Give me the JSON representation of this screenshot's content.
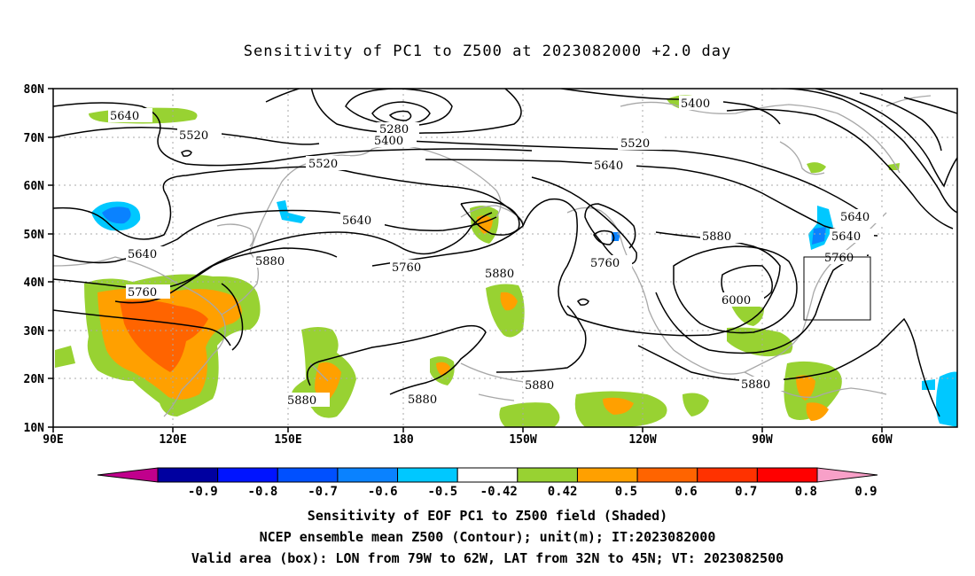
{
  "title": "Sensitivity of PC1 to Z500 at 2023082000 +2.0 day",
  "map": {
    "lat_labels": [
      "80N",
      "70N",
      "60N",
      "50N",
      "40N",
      "30N",
      "20N",
      "10N"
    ],
    "lon_labels": [
      "90E",
      "120E",
      "150E",
      "180",
      "150W",
      "120W",
      "90W",
      "60W"
    ],
    "contour_labels": [
      "5640",
      "5520",
      "5280",
      "5400",
      "5520",
      "5640",
      "5400",
      "5520",
      "5640",
      "5760",
      "5640",
      "5880",
      "5760",
      "5760",
      "5880",
      "5880",
      "5760",
      "6000",
      "5880",
      "5880",
      "5880",
      "5880"
    ],
    "valid_box": {
      "lon_from": "79W",
      "lon_to": "62W",
      "lat_from": "32N",
      "lat_to": "45N"
    }
  },
  "colorbar": {
    "labels": [
      "-0.9",
      "-0.8",
      "-0.7",
      "-0.6",
      "-0.5",
      "-0.42",
      "0.42",
      "0.5",
      "0.6",
      "0.7",
      "0.8",
      "0.9"
    ],
    "colors": [
      "#c0008c",
      "#0000a0",
      "#0014ff",
      "#0050ff",
      "#0a82ff",
      "#00c8ff",
      "#ffffff",
      "#98d232",
      "#ffa000",
      "#ff6400",
      "#ff3200",
      "#ff0000",
      "#f8a0c8"
    ]
  },
  "captions": {
    "line1": "Sensitivity of EOF PC1 to Z500 field (Shaded)",
    "line2": "NCEP ensemble mean Z500 (Contour); unit(m); IT:2023082000",
    "line3": "Valid area (box): LON from 79W to 62W, LAT from 32N to 45N; VT: 2023082500"
  }
}
